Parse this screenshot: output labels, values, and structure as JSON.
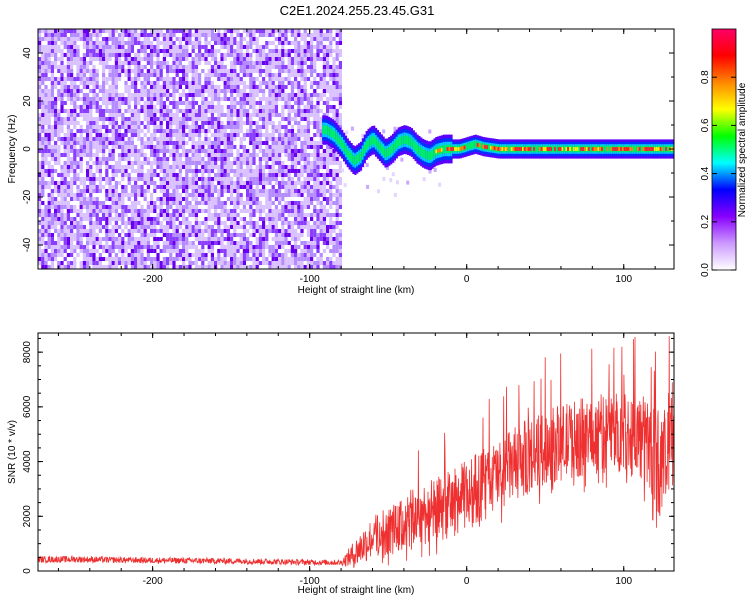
{
  "title": "C2E1.2024.255.23.45.G31",
  "chart_data": [
    {
      "type": "heatmap",
      "xlabel": "Height of straight line (km)",
      "ylabel": "Frequency (Hz)",
      "xlim": [
        -273,
        132
      ],
      "ylim": [
        -50,
        50
      ],
      "xticks": [
        -200,
        -100,
        0,
        100
      ],
      "xtick_labels": [
        "-200",
        "-100",
        "0",
        "100"
      ],
      "yticks": [
        -40,
        -20,
        0,
        20,
        40
      ],
      "ytick_labels": [
        "-40",
        "-20",
        "0",
        "20",
        "40"
      ],
      "noise_region_x": [
        -273,
        -80
      ],
      "signal_band_x": [
        -80,
        132
      ],
      "signal_trace": {
        "x": [
          -90,
          -85,
          -80,
          -76,
          -72,
          -68,
          -64,
          -60,
          -56,
          -52,
          -48,
          -44,
          -40,
          -36,
          -32,
          -28,
          -24,
          -20,
          -15,
          -10,
          -5,
          0,
          5,
          10,
          20,
          40,
          60,
          80,
          100,
          120,
          132
        ],
        "y": [
          8,
          6,
          2,
          -2,
          -5,
          -3,
          2,
          4,
          1,
          -2,
          0,
          3,
          4,
          3,
          0,
          -2,
          -3,
          -1,
          0,
          0,
          0,
          1,
          2,
          1,
          0,
          0,
          0,
          0,
          0,
          0,
          0
        ]
      },
      "grid": false
    },
    {
      "type": "colorbar",
      "label": "Normalized spectral amplitude",
      "range": [
        0,
        1
      ],
      "ticks": [
        0.0,
        0.2,
        0.4,
        0.6,
        0.8
      ],
      "tick_labels": [
        "0.0",
        "0.2",
        "0.4",
        "0.6",
        "0.8"
      ],
      "colors": [
        "#ffffff",
        "#cc99ff",
        "#8800ff",
        "#0000ff",
        "#00ffff",
        "#00ff00",
        "#ffff00",
        "#ff8800",
        "#ff0000",
        "#ff0066"
      ]
    },
    {
      "type": "line",
      "xlabel": "Height of straight line (km)",
      "ylabel": "SNR (10 * v/v)",
      "xlim": [
        -273,
        132
      ],
      "ylim": [
        0,
        8700
      ],
      "xticks": [
        -200,
        -100,
        0,
        100
      ],
      "xtick_labels": [
        "-200",
        "-100",
        "0",
        "100"
      ],
      "yticks": [
        0,
        2000,
        4000,
        6000,
        8000
      ],
      "ytick_labels": [
        "0",
        "2000",
        "4000",
        "6000",
        "8000"
      ],
      "series": [
        {
          "color": "#ee3030",
          "x": [
            -273,
            -250,
            -220,
            -180,
            -140,
            -100,
            -80,
            -72,
            -65,
            -58,
            -50,
            -42,
            -35,
            -28,
            -20,
            -12,
            -5,
            0,
            10,
            20,
            30,
            40,
            50,
            60,
            70,
            80,
            90,
            100,
            110,
            115,
            120,
            125,
            130,
            132
          ],
          "base": [
            420,
            430,
            400,
            380,
            360,
            320,
            310,
            600,
            1000,
            1300,
            1450,
            1600,
            1900,
            2100,
            2200,
            2400,
            2600,
            2800,
            3200,
            3500,
            3900,
            4200,
            4500,
            4700,
            4850,
            4950,
            5050,
            5100,
            4900,
            4700,
            4200,
            3800,
            4800,
            5200
          ],
          "spread": [
            120,
            120,
            110,
            110,
            110,
            100,
            100,
            500,
            700,
            800,
            900,
            1000,
            1100,
            1150,
            1200,
            1250,
            1250,
            1300,
            1300,
            1300,
            1350,
            1400,
            1400,
            1400,
            1450,
            1450,
            1500,
            1500,
            1600,
            1700,
            1900,
            2000,
            2000,
            2000
          ]
        }
      ],
      "grid": false
    }
  ]
}
